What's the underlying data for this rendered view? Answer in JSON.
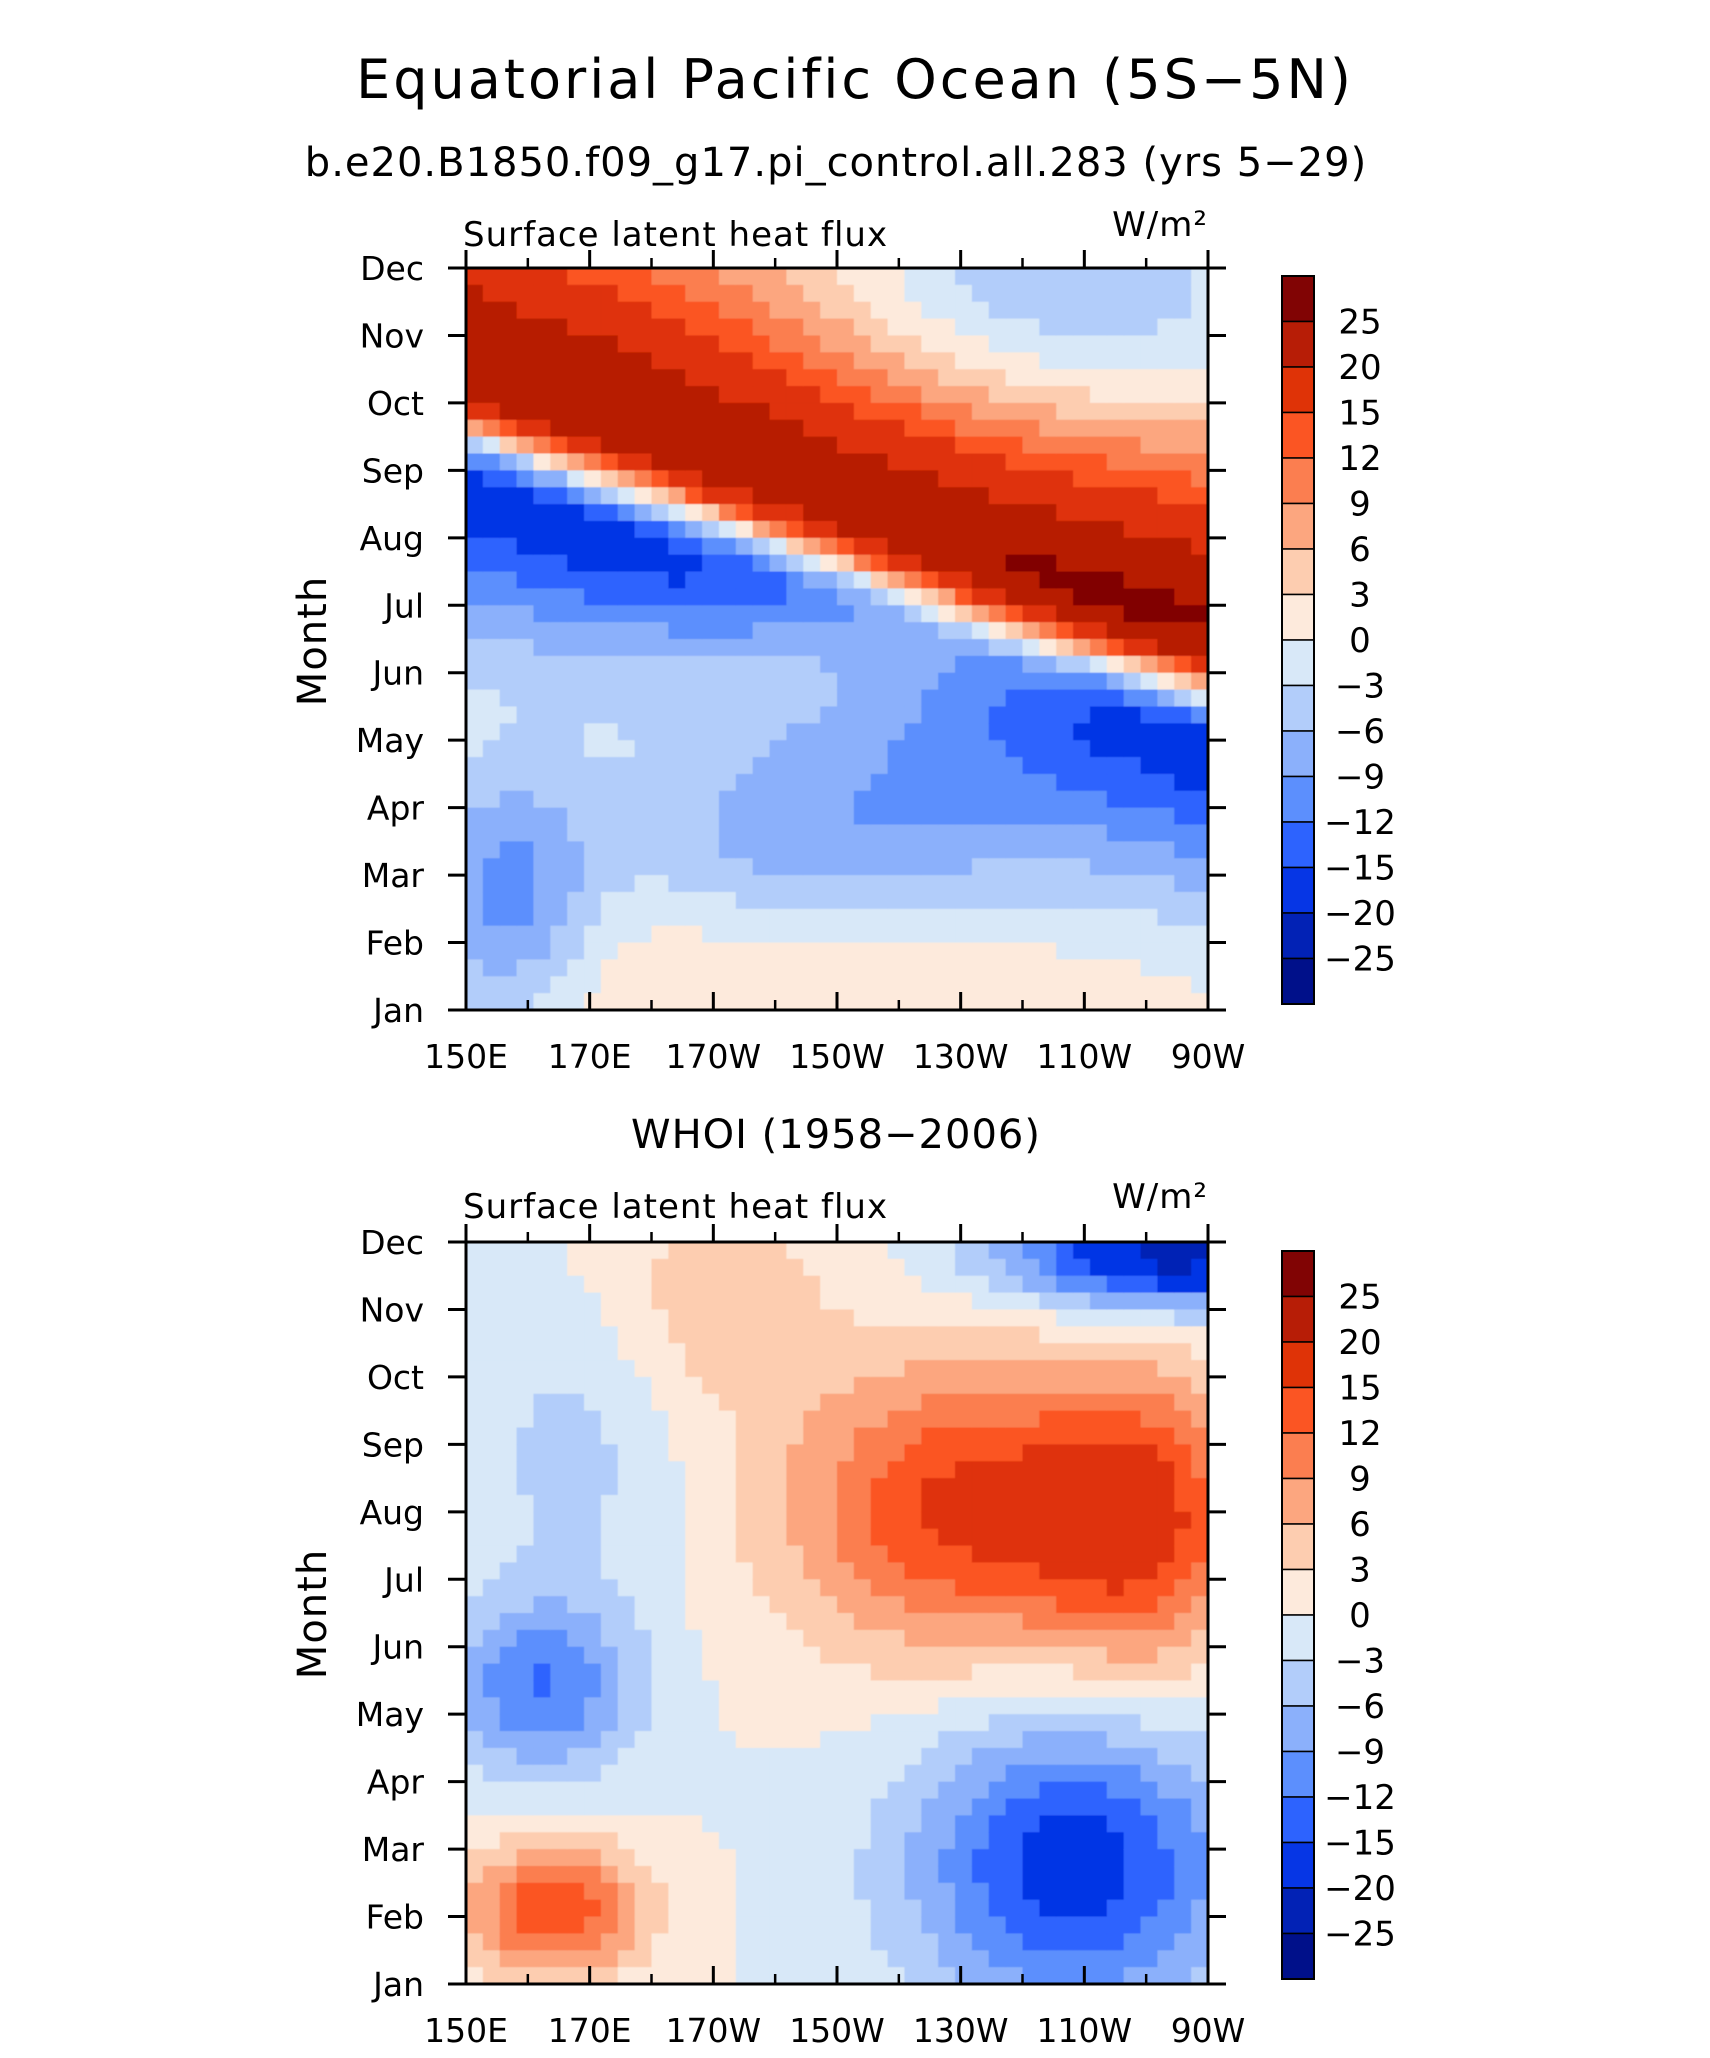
{
  "figure": {
    "title": "Equatorial Pacific Ocean (5S−5N)",
    "subtitle": "b.e20.B1850.f09_g17.pi_control.all.283 (yrs 5−29)",
    "second_subtitle": "WHOI (1958−2006)"
  },
  "chart_data": [
    {
      "type": "heatmap",
      "name": "model",
      "title": "Surface latent heat flux",
      "units": "W/m²",
      "ylabel": "Month",
      "x_ticks": [
        "150E",
        "170E",
        "170W",
        "150W",
        "130W",
        "110W",
        "90W"
      ],
      "y_ticks": [
        "Jan",
        "Feb",
        "Mar",
        "Apr",
        "May",
        "Jun",
        "Jul",
        "Aug",
        "Sep",
        "Oct",
        "Nov",
        "Dec"
      ],
      "colorbar_levels": [
        "25",
        "20",
        "15",
        "12",
        "9",
        "6",
        "3",
        "0",
        "−3",
        "−6",
        "−9",
        "−12",
        "−15",
        "−20",
        "−25"
      ],
      "colors": [
        "#810404",
        "#b71d06",
        "#df3307",
        "#fb5523",
        "#fb7e50",
        "#fca67f",
        "#fdcdb0",
        "#fdeadc",
        "#d8e8f8",
        "#b2cdfa",
        "#8bb0fb",
        "#5c8ffd",
        "#2d63fe",
        "#0636e5",
        "#0222b5",
        "#00108a"
      ]
    },
    {
      "type": "heatmap",
      "name": "obs",
      "title": "Surface latent heat flux",
      "units": "W/m²",
      "ylabel": "Month",
      "x_ticks": [
        "150E",
        "170E",
        "170W",
        "150W",
        "130W",
        "110W",
        "90W"
      ],
      "y_ticks": [
        "Jan",
        "Feb",
        "Mar",
        "Apr",
        "May",
        "Jun",
        "Jul",
        "Aug",
        "Sep",
        "Oct",
        "Nov",
        "Dec"
      ],
      "colorbar_levels": [
        "25",
        "20",
        "15",
        "12",
        "9",
        "6",
        "3",
        "0",
        "−3",
        "−6",
        "−9",
        "−12",
        "−15",
        "−20",
        "−25"
      ],
      "colors": [
        "#810404",
        "#b71d06",
        "#df3307",
        "#fb5523",
        "#fb7e50",
        "#fca67f",
        "#fdcdb0",
        "#fdeadc",
        "#d8e8f8",
        "#b2cdfa",
        "#8bb0fb",
        "#5c8ffd",
        "#2d63fe",
        "#0636e5",
        "#0222b5",
        "#00108a"
      ]
    }
  ]
}
